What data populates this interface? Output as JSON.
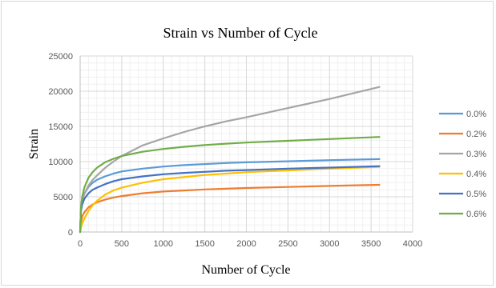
{
  "chart_data": {
    "type": "line",
    "title": "Strain vs Number of Cycle",
    "xlabel": "Number of Cycle",
    "ylabel": "Strain",
    "xlim": [
      0,
      4000
    ],
    "ylim": [
      0,
      25000
    ],
    "x_ticks": [
      0,
      500,
      1000,
      1500,
      2000,
      2500,
      3000,
      3500,
      4000
    ],
    "y_ticks": [
      0,
      5000,
      10000,
      15000,
      20000,
      25000
    ],
    "grid": true,
    "legend_position": "right",
    "x": [
      0,
      10,
      25,
      50,
      100,
      150,
      200,
      300,
      400,
      500,
      750,
      1000,
      1250,
      1500,
      1750,
      2000,
      2500,
      3000,
      3600
    ],
    "series": [
      {
        "name": "0.0%",
        "color": "#5b9bd5",
        "values": [
          0,
          3200,
          4400,
          5400,
          6400,
          7000,
          7400,
          7900,
          8300,
          8600,
          9000,
          9300,
          9500,
          9650,
          9800,
          9900,
          10050,
          10200,
          10350
        ]
      },
      {
        "name": "0.2%",
        "color": "#ed7d31",
        "values": [
          0,
          1400,
          2200,
          2800,
          3500,
          3900,
          4200,
          4600,
          4900,
          5100,
          5500,
          5750,
          5900,
          6050,
          6150,
          6250,
          6400,
          6550,
          6700
        ]
      },
      {
        "name": "0.3%",
        "color": "#a5a5a5",
        "values": [
          0,
          3000,
          4300,
          5400,
          6600,
          7400,
          8000,
          9100,
          10000,
          10800,
          12300,
          13300,
          14200,
          15000,
          15700,
          16300,
          17600,
          18900,
          20600
        ]
      },
      {
        "name": "0.4%",
        "color": "#ffc000",
        "values": [
          0,
          600,
          1200,
          1900,
          3000,
          3800,
          4400,
          5300,
          5900,
          6300,
          7000,
          7500,
          7800,
          8100,
          8300,
          8500,
          8750,
          9000,
          9250
        ]
      },
      {
        "name": "0.5%",
        "color": "#4472c4",
        "values": [
          0,
          3000,
          3900,
          4700,
          5500,
          6000,
          6300,
          6800,
          7200,
          7500,
          7900,
          8200,
          8400,
          8550,
          8700,
          8800,
          9000,
          9150,
          9350
        ]
      },
      {
        "name": "0.6%",
        "color": "#70ad47",
        "values": [
          0,
          3500,
          5000,
          6300,
          7700,
          8500,
          9100,
          9900,
          10400,
          10800,
          11400,
          11800,
          12100,
          12350,
          12550,
          12700,
          12950,
          13200,
          13500
        ]
      }
    ]
  }
}
